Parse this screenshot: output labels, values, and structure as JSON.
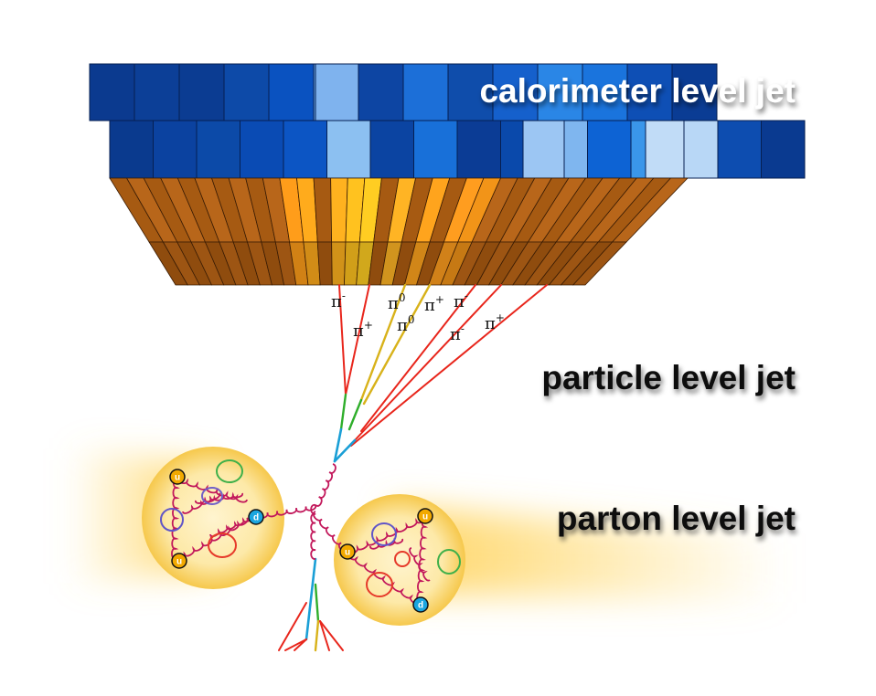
{
  "labels": {
    "calorimeter": "calorimeter level jet",
    "particle": "particle level jet",
    "parton": "parton level jet"
  },
  "particles": [
    {
      "sym": "π",
      "charge": "-"
    },
    {
      "sym": "π",
      "charge": "+"
    },
    {
      "sym": "π",
      "charge": "0"
    },
    {
      "sym": "π",
      "charge": "0"
    },
    {
      "sym": "π",
      "charge": "+"
    },
    {
      "sym": "π",
      "charge": "-"
    },
    {
      "sym": "π",
      "charge": "-"
    },
    {
      "sym": "π",
      "charge": "+"
    }
  ],
  "quarks_left": [
    "u",
    "d",
    "u"
  ],
  "quarks_right": [
    "u",
    "u",
    "d"
  ],
  "colors": {
    "gluon": "#c2185b",
    "quark_u": "#f2a900",
    "quark_d": "#1aa6e0",
    "track_red": "#e8261c",
    "track_yellow": "#d8b21a",
    "track_green": "#2fae2b",
    "track_cyan": "#1a9fd6",
    "glow": "#ffd66b"
  }
}
